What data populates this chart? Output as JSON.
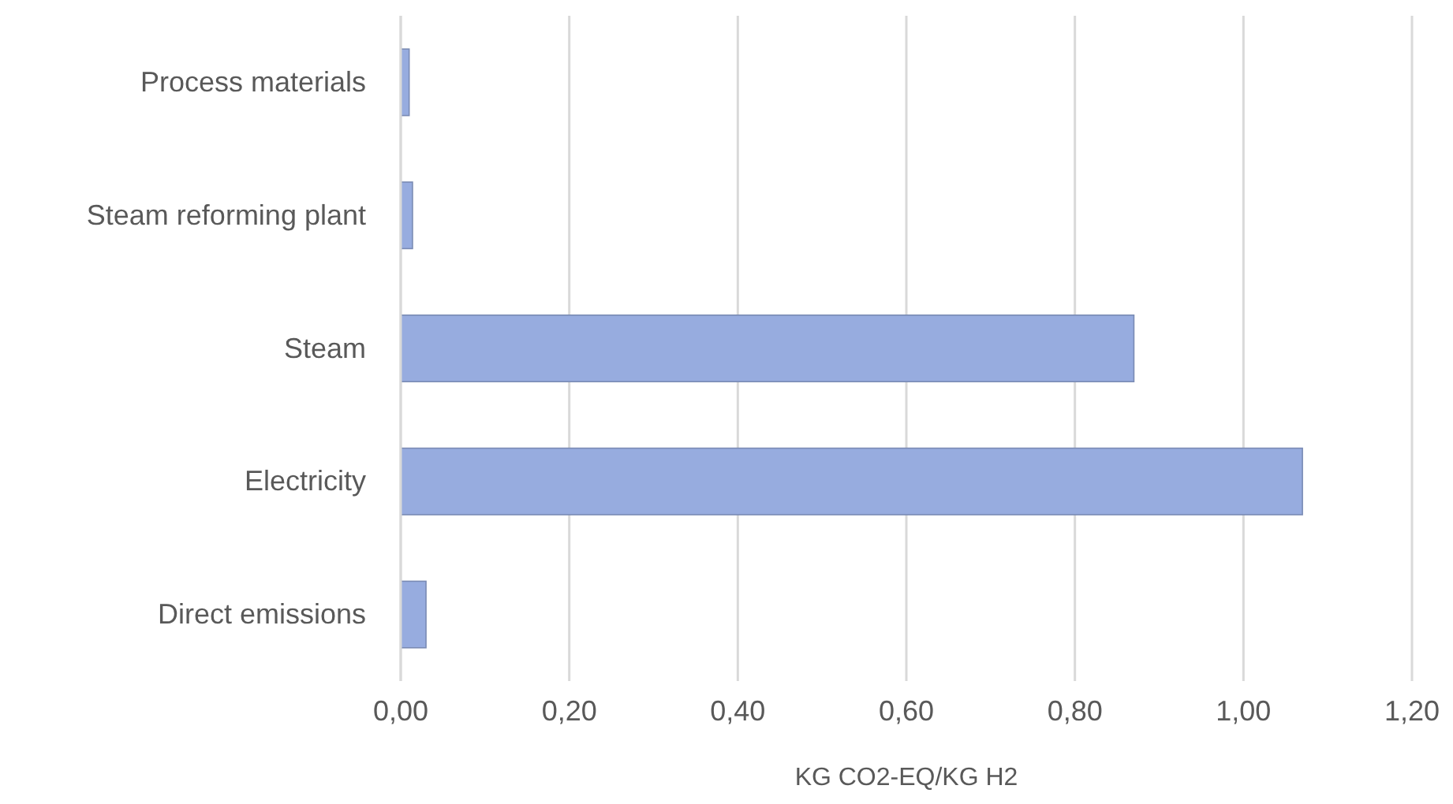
{
  "chart_data": {
    "type": "bar",
    "orientation": "horizontal",
    "xlabel": "KG CO2-EQ/KG H2",
    "categories": [
      "Process materials",
      "Steam reforming plant",
      "Steam",
      "Electricity",
      "Direct emissions"
    ],
    "values": [
      0.01,
      0.014,
      0.87,
      1.07,
      0.03
    ],
    "color": "#97acdf",
    "xlim": [
      0,
      1.2
    ],
    "xticks": [
      {
        "value": 0,
        "label": "0,00"
      },
      {
        "value": 0.2,
        "label": "0,20"
      },
      {
        "value": 0.4,
        "label": "0,40"
      },
      {
        "value": 0.6,
        "label": "0,60"
      },
      {
        "value": 0.8,
        "label": "0,80"
      },
      {
        "value": 1,
        "label": "1,00"
      },
      {
        "value": 1.2,
        "label": "1,20"
      }
    ],
    "grid": "x"
  }
}
